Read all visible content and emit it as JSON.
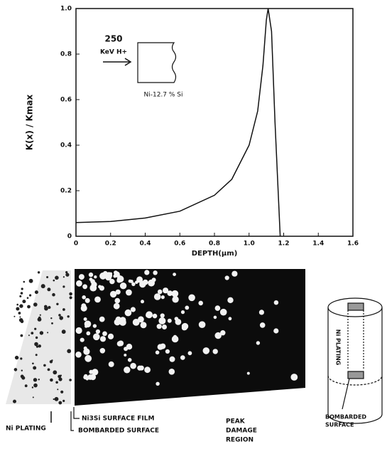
{
  "chart_data": {
    "type": "line",
    "x": [
      0,
      0.2,
      0.4,
      0.6,
      0.8,
      0.9,
      1.0,
      1.05,
      1.08,
      1.1,
      1.11,
      1.13,
      1.15,
      1.18
    ],
    "values": [
      0.06,
      0.065,
      0.08,
      0.11,
      0.18,
      0.25,
      0.4,
      0.55,
      0.75,
      0.95,
      1.0,
      0.9,
      0.5,
      0.0
    ],
    "color": "#111111",
    "xlim": [
      0,
      1.6
    ],
    "ylim": [
      0,
      1.0
    ],
    "xticks": [
      0,
      0.2,
      0.4,
      0.6,
      0.8,
      {
        "value": 1.0,
        "label": "1.0"
      },
      1.2,
      1.4,
      1.6
    ],
    "yticks": [
      0,
      0.2,
      0.4,
      0.6,
      0.8,
      {
        "value": 1.0,
        "label": "1.0"
      }
    ],
    "x_label": "DEPTH(μm)",
    "y_label": "K(x) / Kmax",
    "annotations": {
      "energy": "250",
      "beam": "KeV H+",
      "target": "Ni-12.7 % Si"
    }
  },
  "figure": {
    "ni_plating": "Ni PLATING",
    "surface_film": "Ni3Si SURFACE FILM",
    "bombarded": "BOMBARDED SURFACE",
    "peak": [
      "PEAK",
      "DAMAGE",
      "REGION"
    ],
    "cyl_plating": "Ni PLATING",
    "cyl_bombarded": [
      "BOMBARDED",
      "SURFACE"
    ]
  }
}
